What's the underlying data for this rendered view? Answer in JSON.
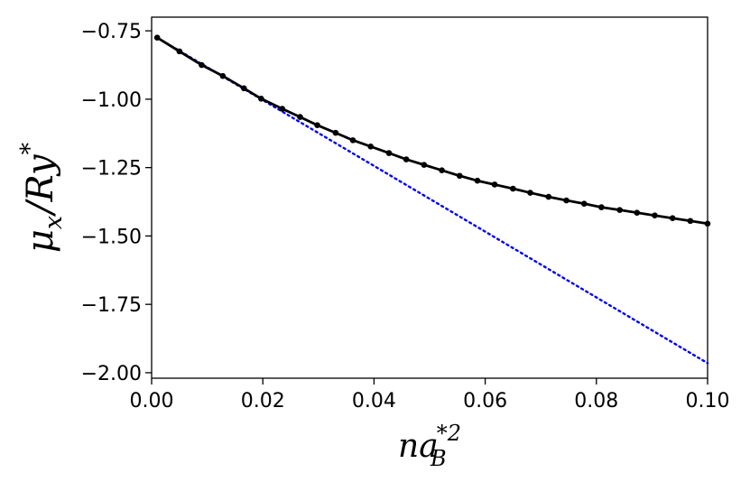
{
  "chart_data": {
    "type": "line",
    "xlabel": {
      "base": "na",
      "sub": "B",
      "sup": "*2"
    },
    "ylabel": {
      "mu": "μ",
      "mu_sub": "x",
      "sep": "/",
      "base": "Ry",
      "sup": "*"
    },
    "xlim": [
      0.0,
      0.1
    ],
    "ylim": [
      -2.02,
      -0.7
    ],
    "x_ticks": [
      0.0,
      0.02,
      0.04,
      0.06,
      0.08,
      0.1
    ],
    "x_tick_labels": [
      "0.00",
      "0.02",
      "0.04",
      "0.06",
      "0.08",
      "0.10"
    ],
    "y_ticks": [
      -0.75,
      -1.0,
      -1.25,
      -1.5,
      -1.75,
      -2.0
    ],
    "y_tick_labels": [
      "−0.75",
      "−1.00",
      "−1.25",
      "−1.50",
      "−1.75",
      "−2.00"
    ],
    "grid": false,
    "series": [
      {
        "style": "solid-with-markers",
        "color": "#000000",
        "x": [
          0.001,
          0.005,
          0.009,
          0.0128,
          0.0166,
          0.0197,
          0.0235,
          0.0267,
          0.0298,
          0.0331,
          0.0362,
          0.0394,
          0.0427,
          0.0458,
          0.049,
          0.0522,
          0.0554,
          0.0586,
          0.0617,
          0.065,
          0.0681,
          0.0714,
          0.0746,
          0.0778,
          0.0809,
          0.0842,
          0.0873,
          0.0905,
          0.0937,
          0.0969,
          0.1
        ],
        "y": [
          -0.775,
          -0.825,
          -0.875,
          -0.915,
          -0.96,
          -0.998,
          -1.035,
          -1.065,
          -1.095,
          -1.123,
          -1.15,
          -1.173,
          -1.197,
          -1.22,
          -1.24,
          -1.26,
          -1.28,
          -1.298,
          -1.312,
          -1.327,
          -1.342,
          -1.357,
          -1.37,
          -1.382,
          -1.395,
          -1.405,
          -1.415,
          -1.425,
          -1.435,
          -1.445,
          -1.455
        ]
      },
      {
        "style": "dotted",
        "color": "#0000ee",
        "x": [
          0.001,
          0.1
        ],
        "y": [
          -0.775,
          -1.965
        ]
      }
    ]
  }
}
